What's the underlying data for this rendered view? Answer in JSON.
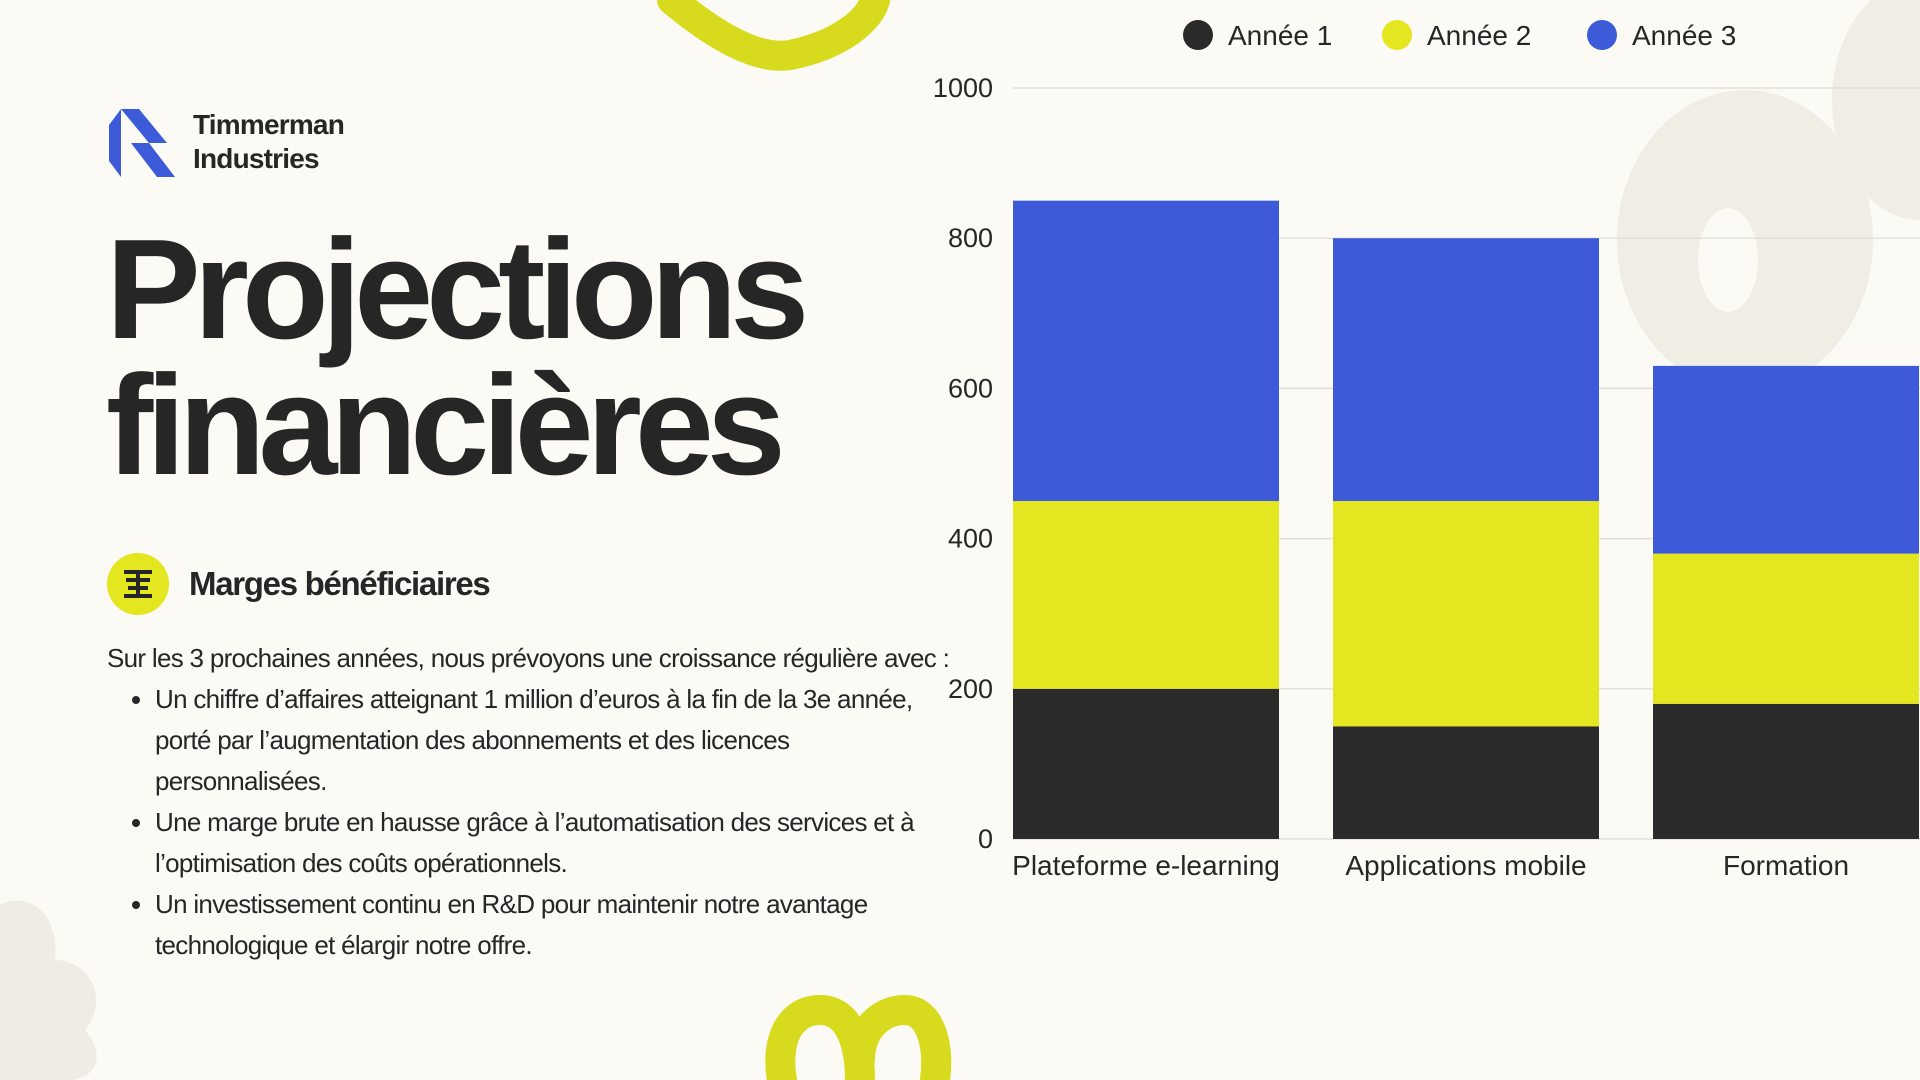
{
  "brand": {
    "line1": "Timmerman",
    "line2": "Industries"
  },
  "title": {
    "line1": "Projections",
    "line2": "financières"
  },
  "section": {
    "icon": "building-glyph-icon",
    "title": "Marges bénéficiaires"
  },
  "body": {
    "intro": "Sur les 3 prochaines années, nous prévoyons une croissance régulière avec :",
    "bullets": [
      "Un chiffre d’affaires atteignant 1 million d’euros à la fin de la 3e année, porté par l’augmentation des abonnements et des licences personnalisées.",
      "Une marge brute en hausse grâce à l’automatisation des services et à l’optimisation des coûts opérationnels.",
      "Un investissement continu en R&D pour maintenir notre avantage technologique et élargir notre offre."
    ]
  },
  "colors": {
    "accent": "#e4e61f",
    "brand": "#3d5bd8",
    "dark": "#262626",
    "background": "#fcfaf5"
  },
  "chart_data": {
    "type": "bar",
    "stacked": true,
    "categories": [
      "Plateforme e-learning",
      "Applications mobile",
      "Formation"
    ],
    "series": [
      {
        "name": "Année 1",
        "values": [
          200,
          150,
          180
        ],
        "color": "#2a2a2a"
      },
      {
        "name": "Année 2",
        "values": [
          250,
          300,
          200
        ],
        "color": "#e4e61f"
      },
      {
        "name": "Année 3",
        "values": [
          400,
          350,
          250
        ],
        "color": "#3d5bd8"
      }
    ],
    "ylim": [
      0,
      1000
    ],
    "yticks": [
      0,
      200,
      400,
      600,
      800,
      1000
    ],
    "grid": true,
    "legend": "top"
  }
}
